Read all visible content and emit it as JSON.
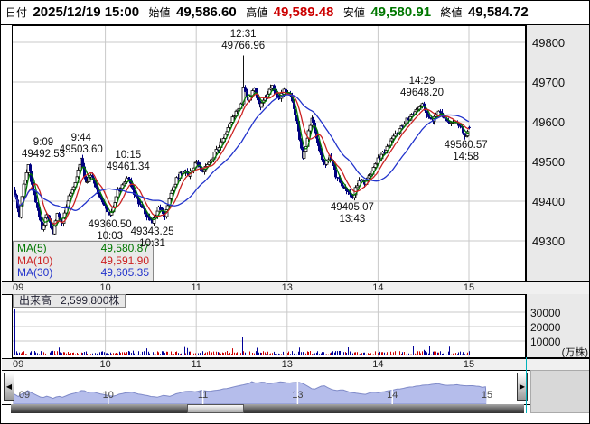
{
  "header": {
    "date_label": "日付",
    "date_value": "2025/12/19 15:00",
    "open_label": "始値",
    "open_value": "49,586.60",
    "high_label": "高値",
    "high_value": "49,589.48",
    "low_label": "安値",
    "low_value": "49,580.91",
    "close_label": "終値",
    "close_value": "49,584.72",
    "high_color": "#cc0000",
    "low_color": "#007700"
  },
  "chart_data": {
    "type": "candlestick",
    "interval": "1min",
    "session": {
      "open": "9:00",
      "break_start": "11:30",
      "break_end": "12:30",
      "close": "15:00"
    },
    "y_axis": {
      "ticks": [
        49300,
        49400,
        49500,
        49600,
        49700,
        49800
      ]
    },
    "x_axis": {
      "hour_labels": [
        "09",
        "10",
        "11",
        "13",
        "14",
        "15"
      ]
    },
    "grid": true,
    "up_color": "#111111",
    "down_color": "#000080",
    "price_waypoints": [
      [
        "9:00",
        49420
      ],
      [
        "9:03",
        49360
      ],
      [
        "9:06",
        49440
      ],
      [
        "9:09",
        49492.53
      ],
      [
        "9:12",
        49430
      ],
      [
        "9:15",
        49380
      ],
      [
        "9:18",
        49330
      ],
      [
        "9:21",
        49365
      ],
      [
        "9:25",
        49320
      ],
      [
        "9:28",
        49370
      ],
      [
        "9:31",
        49340
      ],
      [
        "9:35",
        49400
      ],
      [
        "9:38",
        49430
      ],
      [
        "9:41",
        49460
      ],
      [
        "9:44",
        49503.6
      ],
      [
        "9:47",
        49445
      ],
      [
        "9:50",
        49465
      ],
      [
        "9:53",
        49440
      ],
      [
        "9:57",
        49400
      ],
      [
        "10:03",
        49360.5
      ],
      [
        "10:08",
        49425
      ],
      [
        "10:15",
        49461.34
      ],
      [
        "10:19",
        49415
      ],
      [
        "10:23",
        49390
      ],
      [
        "10:27",
        49365
      ],
      [
        "10:31",
        49343.25
      ],
      [
        "10:35",
        49385
      ],
      [
        "10:39",
        49365
      ],
      [
        "10:43",
        49420
      ],
      [
        "10:47",
        49455
      ],
      [
        "10:51",
        49480
      ],
      [
        "10:55",
        49465
      ],
      [
        "11:00",
        49500
      ],
      [
        "11:04",
        49475
      ],
      [
        "11:08",
        49495
      ],
      [
        "11:12",
        49520
      ],
      [
        "11:16",
        49545
      ],
      [
        "11:20",
        49580
      ],
      [
        "11:24",
        49610
      ],
      [
        "11:27",
        49630
      ],
      [
        "11:30",
        49650
      ],
      [
        "12:31",
        49690
      ],
      [
        "12:34",
        49650
      ],
      [
        "12:38",
        49685
      ],
      [
        "12:42",
        49640
      ],
      [
        "12:46",
        49665
      ],
      [
        "12:50",
        49690
      ],
      [
        "12:54",
        49655
      ],
      [
        "12:58",
        49680
      ],
      [
        "13:02",
        49665
      ],
      [
        "13:06",
        49600
      ],
      [
        "13:10",
        49510
      ],
      [
        "13:13",
        49555
      ],
      [
        "13:16",
        49610
      ],
      [
        "13:20",
        49545
      ],
      [
        "13:24",
        49490
      ],
      [
        "13:28",
        49515
      ],
      [
        "13:32",
        49465
      ],
      [
        "13:36",
        49440
      ],
      [
        "13:39",
        49425
      ],
      [
        "13:43",
        49405.07
      ],
      [
        "13:47",
        49455
      ],
      [
        "13:51",
        49445
      ],
      [
        "13:55",
        49470
      ],
      [
        "13:59",
        49500
      ],
      [
        "14:03",
        49520
      ],
      [
        "14:07",
        49545
      ],
      [
        "14:11",
        49565
      ],
      [
        "14:15",
        49585
      ],
      [
        "14:19",
        49605
      ],
      [
        "14:23",
        49620
      ],
      [
        "14:26",
        49635
      ],
      [
        "14:29",
        49648.2
      ],
      [
        "14:32",
        49620
      ],
      [
        "14:36",
        49605
      ],
      [
        "14:40",
        49625
      ],
      [
        "14:44",
        49610
      ],
      [
        "14:48",
        49595
      ],
      [
        "14:52",
        49600
      ],
      [
        "14:56",
        49575
      ],
      [
        "14:58",
        49560.57
      ],
      [
        "15:00",
        49584.72
      ]
    ],
    "key_candles": {
      "9:09": {
        "high": 49492.53
      },
      "9:44": {
        "high": 49503.6
      },
      "10:03": {
        "low": 49360.5
      },
      "10:15": {
        "high": 49461.34
      },
      "10:31": {
        "low": 49343.25
      },
      "12:31": {
        "high": 49766.96
      },
      "13:43": {
        "low": 49405.07
      },
      "14:29": {
        "high": 49648.2
      },
      "14:58": {
        "low": 49560.57
      },
      "15:00": {
        "open": 49586.6,
        "high": 49589.48,
        "low": 49580.91,
        "close": 49584.72
      }
    },
    "annotations": [
      {
        "time": "9:09",
        "value": "49492.53",
        "side": "high"
      },
      {
        "time": "9:44",
        "value": "49503.60",
        "side": "high"
      },
      {
        "time": "10:15",
        "value": "49461.34",
        "side": "high"
      },
      {
        "time": "10:03",
        "value": "49360.50",
        "side": "low"
      },
      {
        "time": "10:31",
        "value": "49343.25",
        "side": "low"
      },
      {
        "time": "12:31",
        "value": "49766.96",
        "side": "high"
      },
      {
        "time": "13:43",
        "value": "49405.07",
        "side": "low"
      },
      {
        "time": "14:29",
        "value": "49648.20",
        "side": "high"
      },
      {
        "time": "14:58",
        "value": "49560.57",
        "side": "low"
      }
    ],
    "moving_averages": [
      {
        "label": "MA(5)",
        "period": 5,
        "value": "49,580.87",
        "color": "#007700"
      },
      {
        "label": "MA(10)",
        "period": 10,
        "value": "49,591.90",
        "color": "#cc2222"
      },
      {
        "label": "MA(30)",
        "period": 30,
        "value": "49,605.35",
        "color": "#2233cc"
      }
    ],
    "volume": {
      "title_label": "出来高",
      "total": "2,599,800株",
      "axis_ticks": [
        10000,
        20000,
        30000
      ],
      "unit_label": "(万株)",
      "spikes": [
        [
          "9:00",
          32500
        ],
        [
          "12:30",
          12500
        ]
      ],
      "up_color": "#cc0000",
      "down_color": "#000099"
    }
  },
  "navigator": {
    "hour_labels": [
      "09",
      "10",
      "11",
      "13",
      "14",
      "15"
    ],
    "left_arrow": "◀",
    "right_arrow": "▶",
    "fill_color": "#b5bdeb",
    "line_color": "#7f8ac8"
  }
}
